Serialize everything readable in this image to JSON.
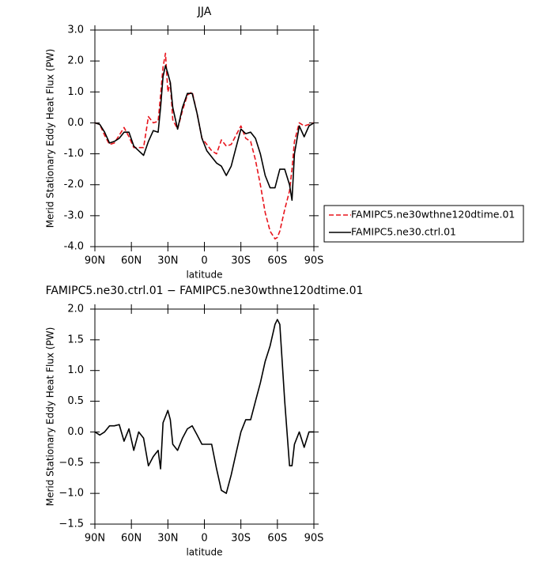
{
  "chart_data": [
    {
      "type": "line",
      "title": "JJA",
      "xlabel": "latitude",
      "ylabel": "Merid Stationary Eddy Heat Flux (PW)",
      "xlim": [
        90,
        -90
      ],
      "ylim": [
        -4,
        3
      ],
      "xticks": [
        {
          "value": 90,
          "label": "90N"
        },
        {
          "value": 60,
          "label": "60N"
        },
        {
          "value": 30,
          "label": "30N"
        },
        0,
        {
          "value": -30,
          "label": "30S"
        },
        {
          "value": -60,
          "label": "60S"
        },
        {
          "value": -90,
          "label": "90S"
        }
      ],
      "yticks": [
        {
          "value": -4,
          "label": "-4.0"
        },
        {
          "value": -3,
          "label": "-3.0"
        },
        {
          "value": -2,
          "label": "-2.0"
        },
        {
          "value": -1,
          "label": "-1.0"
        },
        {
          "value": 0,
          "label": "0.0"
        },
        {
          "value": 1,
          "label": "1.0"
        },
        {
          "value": 2,
          "label": "2.0"
        },
        {
          "value": 3,
          "label": "3.0"
        }
      ],
      "legend": "outside-right",
      "x": [
        90,
        86,
        82,
        78,
        74,
        70,
        66,
        62,
        58,
        54,
        50,
        46,
        42,
        38,
        36,
        34,
        32,
        30,
        28,
        26,
        22,
        18,
        14,
        10,
        6,
        2,
        -2,
        -6,
        -10,
        -14,
        -18,
        -22,
        -26,
        -30,
        -34,
        -38,
        -42,
        -46,
        -50,
        -54,
        -58,
        -60,
        -62,
        -66,
        -70,
        -72,
        -74,
        -78,
        -82,
        -86,
        -90
      ],
      "series": [
        {
          "name": "FAMIPC5.ne30wthne120dtime.01",
          "color": "#e8141c",
          "dash": true,
          "values": [
            0,
            -0.05,
            -0.4,
            -0.7,
            -0.65,
            -0.4,
            -0.15,
            -0.45,
            -0.8,
            -0.8,
            -0.8,
            0.2,
            0,
            0.05,
            0.9,
            1.8,
            2.25,
            1.0,
            1.3,
            0.1,
            -0.2,
            0.4,
            0.9,
            1.0,
            0.3,
            -0.5,
            -0.7,
            -0.9,
            -1.0,
            -0.55,
            -0.75,
            -0.7,
            -0.4,
            -0.1,
            -0.5,
            -0.6,
            -1.2,
            -2.0,
            -2.9,
            -3.5,
            -3.75,
            -3.7,
            -3.5,
            -2.8,
            -2.2,
            -1.5,
            -0.6,
            0,
            -0.1,
            -0.05,
            0
          ]
        },
        {
          "name": "FAMIPC5.ne30.ctrl.01",
          "color": "#000000",
          "dash": false,
          "values": [
            0,
            -0.05,
            -0.3,
            -0.65,
            -0.6,
            -0.5,
            -0.3,
            -0.3,
            -0.75,
            -0.9,
            -1.05,
            -0.6,
            -0.25,
            -0.3,
            0.5,
            1.5,
            1.85,
            1.6,
            1.3,
            0.5,
            -0.2,
            0.5,
            0.95,
            0.95,
            0.3,
            -0.5,
            -0.9,
            -1.1,
            -1.3,
            -1.4,
            -1.7,
            -1.4,
            -0.8,
            -0.2,
            -0.35,
            -0.3,
            -0.5,
            -1.0,
            -1.7,
            -2.1,
            -2.1,
            -1.8,
            -1.5,
            -1.5,
            -2.0,
            -2.5,
            -1.0,
            -0.1,
            -0.45,
            -0.1,
            0
          ]
        }
      ]
    },
    {
      "type": "line",
      "title": "FAMIPC5.ne30.ctrl.01 − FAMIPC5.ne30wthne120dtime.01",
      "xlabel": "latitude",
      "ylabel": "Merid Stationary Eddy Heat Flux (PW)",
      "xlim": [
        90,
        -90
      ],
      "ylim": [
        -1.5,
        2
      ],
      "xticks": [
        {
          "value": 90,
          "label": "90N"
        },
        {
          "value": 60,
          "label": "60N"
        },
        {
          "value": 30,
          "label": "30N"
        },
        0,
        {
          "value": -30,
          "label": "30S"
        },
        {
          "value": -60,
          "label": "60S"
        },
        {
          "value": -90,
          "label": "90S"
        }
      ],
      "yticks": [
        {
          "value": -1.5,
          "label": "−1.5"
        },
        {
          "value": -1,
          "label": "−1.0"
        },
        {
          "value": -0.5,
          "label": "−0.5"
        },
        {
          "value": 0,
          "label": "0.0"
        },
        {
          "value": 0.5,
          "label": "0.5"
        },
        {
          "value": 1,
          "label": "1.0"
        },
        {
          "value": 1.5,
          "label": "1.5"
        },
        {
          "value": 2,
          "label": "2.0"
        }
      ],
      "x": [
        90,
        86,
        82,
        78,
        74,
        70,
        66,
        62,
        58,
        54,
        50,
        46,
        42,
        38,
        36,
        34,
        32,
        30,
        28,
        26,
        22,
        18,
        14,
        10,
        6,
        2,
        -2,
        -6,
        -10,
        -14,
        -18,
        -22,
        -26,
        -30,
        -34,
        -38,
        -42,
        -46,
        -50,
        -54,
        -58,
        -60,
        -62,
        -66,
        -70,
        -72,
        -74,
        -78,
        -82,
        -86,
        -90
      ],
      "series": [
        {
          "color": "#000000",
          "dash": false,
          "values": [
            0,
            -0.05,
            0,
            0.1,
            0.1,
            0.12,
            -0.15,
            0.05,
            -0.3,
            0,
            -0.1,
            -0.55,
            -0.4,
            -0.3,
            -0.6,
            0.15,
            0.25,
            0.35,
            0.2,
            -0.2,
            -0.3,
            -0.1,
            0.05,
            0.1,
            -0.05,
            -0.2,
            -0.2,
            -0.2,
            -0.6,
            -0.95,
            -1.0,
            -0.7,
            -0.35,
            0,
            0.2,
            0.2,
            0.5,
            0.8,
            1.15,
            1.4,
            1.75,
            1.83,
            1.75,
            0.5,
            -0.55,
            -0.55,
            -0.2,
            0,
            -0.25,
            0,
            0
          ]
        }
      ]
    }
  ]
}
